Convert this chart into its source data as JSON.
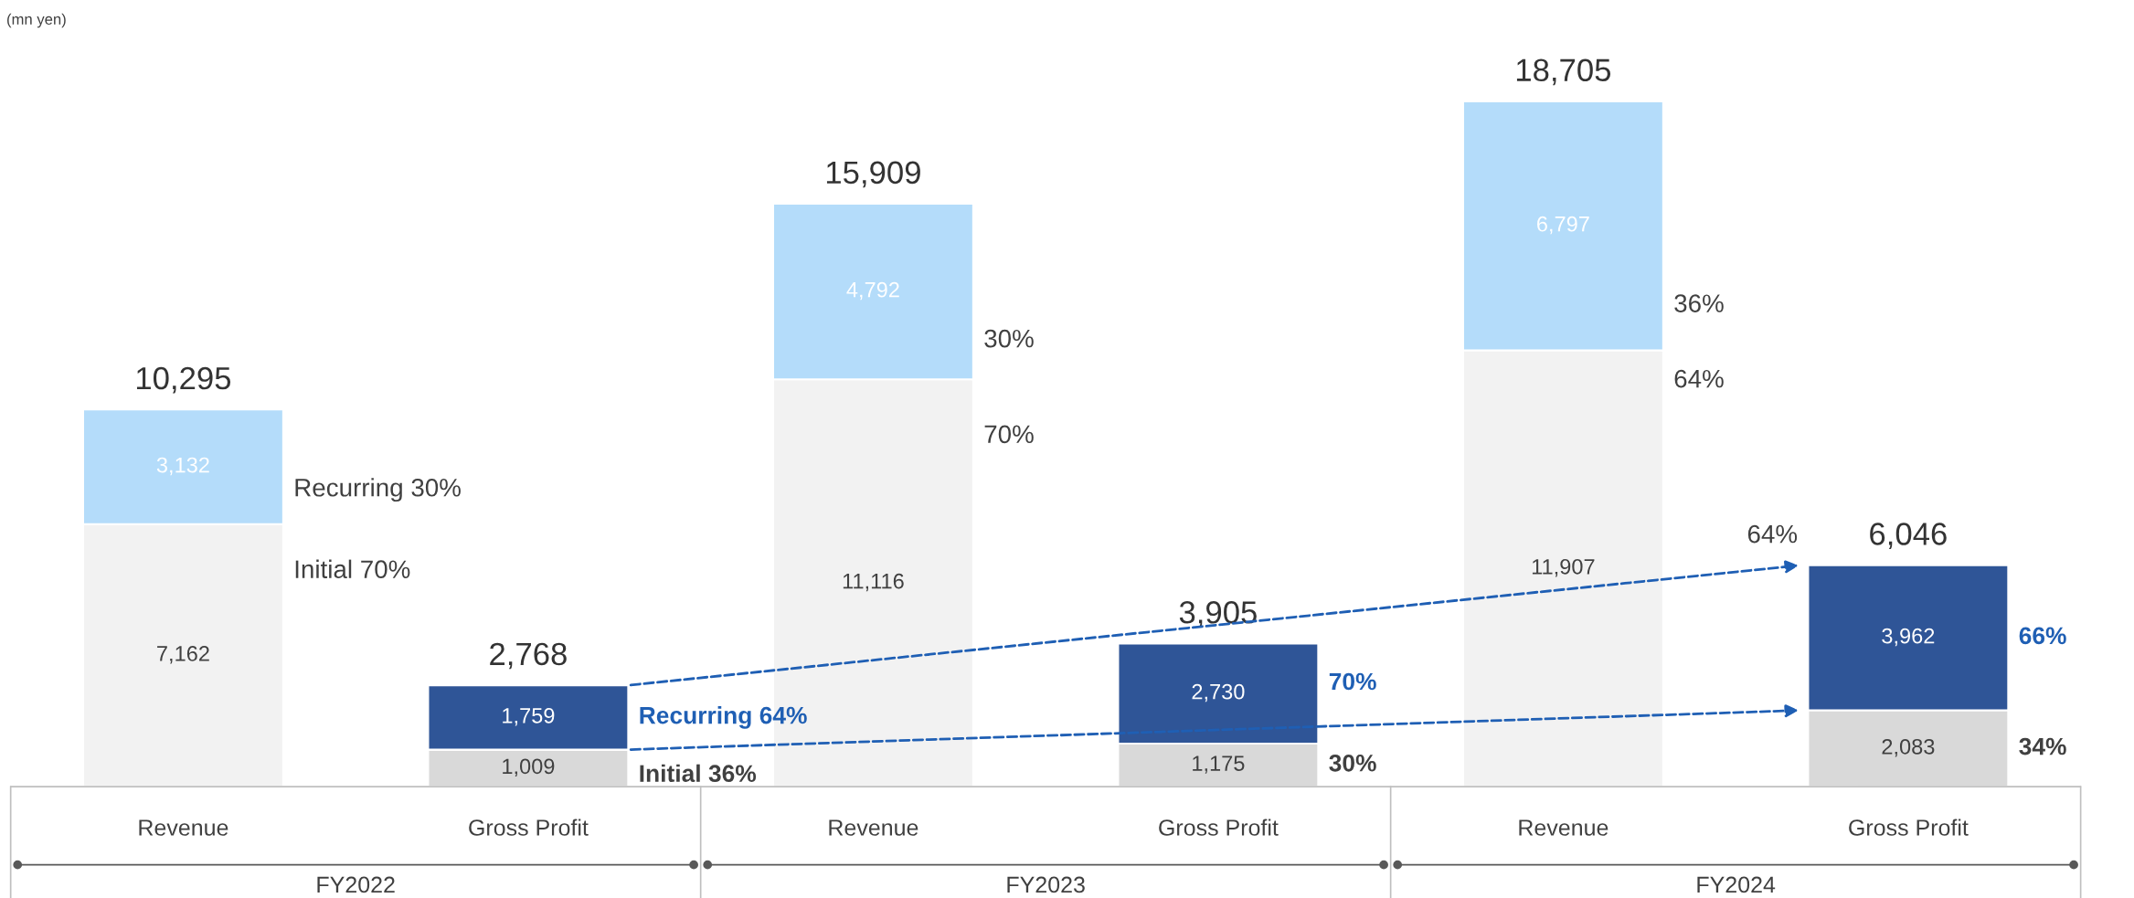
{
  "chart_data": {
    "type": "bar",
    "stacked": true,
    "categories": [
      "Revenue",
      "Gross Profit",
      "Revenue",
      "Gross Profit",
      "Revenue",
      "Gross Profit"
    ],
    "series": [
      {
        "values": [
          7162,
          1009,
          11116,
          1175,
          11907,
          2083
        ],
        "colors": [
          "#f2f2f2",
          "#d9d9d9",
          "#f2f2f2",
          "#d9d9d9",
          "#f2f2f2",
          "#d9d9d9"
        ],
        "value_labels": [
          "7,162",
          "1,009",
          "11,116",
          "1,175",
          "11,907",
          "2,083"
        ]
      },
      {
        "values": [
          3132,
          1759,
          4792,
          2730,
          6797,
          3962
        ],
        "colors": [
          "#b4dcfa",
          "#2f5597",
          "#b4dcfa",
          "#2f5597",
          "#b4dcfa",
          "#2f5597"
        ],
        "value_labels": [
          "3,132",
          "1,759",
          "4,792",
          "2,730",
          "6,797",
          "3,962"
        ]
      }
    ],
    "totals": [
      "10,295",
      "2,768",
      "15,909",
      "3,905",
      "18,705",
      "6,046"
    ],
    "annotations": [
      "(mn yen)",
      "FY2022",
      "FY2023",
      "FY2024",
      "Recurring 30%",
      "Initial 70%",
      "30%",
      "70%",
      "36%",
      "64%",
      "Recurring 64%",
      "Initial 36%",
      "70%",
      "30%",
      "66%",
      "34%",
      "64%"
    ]
  }
}
